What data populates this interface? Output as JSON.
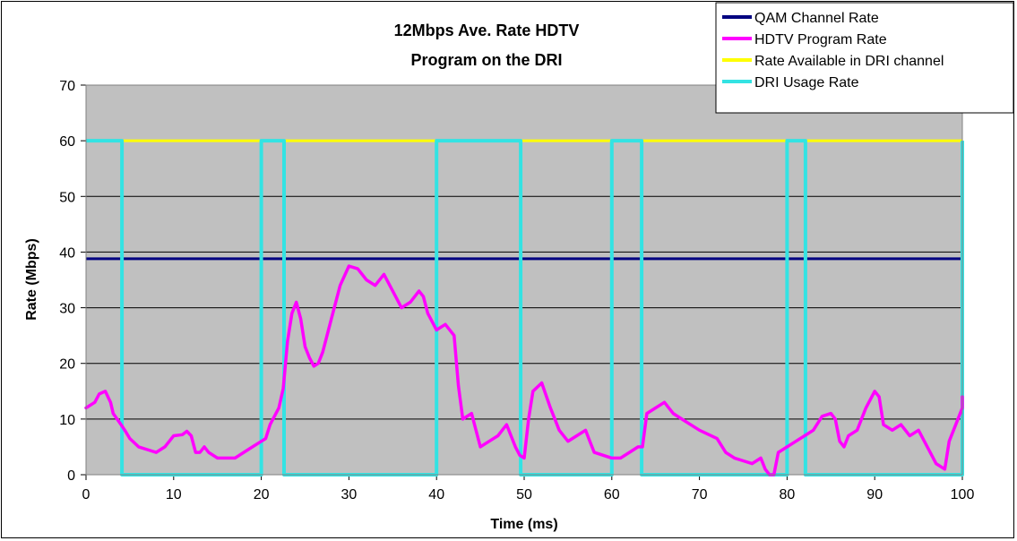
{
  "chart_data": {
    "type": "line",
    "title_lines": [
      "12Mbps Ave. Rate HDTV",
      "Program on the DRI"
    ],
    "xlabel": "Time (ms)",
    "ylabel": "Rate (Mbps)",
    "xlim": [
      0,
      100
    ],
    "ylim": [
      0,
      70
    ],
    "x_ticks": [
      0,
      10,
      20,
      30,
      40,
      50,
      60,
      70,
      80,
      90,
      100
    ],
    "y_ticks": [
      0,
      10,
      20,
      30,
      40,
      50,
      60,
      70
    ],
    "grid": true,
    "legend_position": "top-right",
    "colors": {
      "plot_background": "#C0C0C0",
      "gridline": "#000000"
    },
    "series": [
      {
        "name": "QAM Channel Rate",
        "color": "#000080",
        "points": [
          [
            0,
            38.8
          ],
          [
            100,
            38.8
          ]
        ]
      },
      {
        "name": "HDTV Program Rate",
        "color": "#FF00FF",
        "points": [
          [
            0,
            12
          ],
          [
            1,
            13
          ],
          [
            1.5,
            14.5
          ],
          [
            2.2,
            15
          ],
          [
            2.8,
            13
          ],
          [
            3.1,
            11
          ],
          [
            4,
            9
          ],
          [
            4.5,
            7.8
          ],
          [
            5,
            6.5
          ],
          [
            6,
            5
          ],
          [
            7,
            4.5
          ],
          [
            8,
            4
          ],
          [
            9,
            5
          ],
          [
            10,
            7
          ],
          [
            11,
            7.2
          ],
          [
            11.5,
            7.8
          ],
          [
            12,
            7
          ],
          [
            12.5,
            4
          ],
          [
            13,
            4
          ],
          [
            13.5,
            5
          ],
          [
            14,
            4
          ],
          [
            15,
            3
          ],
          [
            16,
            3
          ],
          [
            17,
            3
          ],
          [
            18,
            4
          ],
          [
            19,
            5
          ],
          [
            20,
            6
          ],
          [
            20.5,
            6.5
          ],
          [
            21,
            9
          ],
          [
            22,
            12
          ],
          [
            22.5,
            15.5
          ],
          [
            23,
            24
          ],
          [
            23.5,
            29
          ],
          [
            24,
            31
          ],
          [
            24.5,
            28
          ],
          [
            25,
            23
          ],
          [
            25.5,
            21
          ],
          [
            26,
            19.5
          ],
          [
            26.5,
            20
          ],
          [
            27,
            22
          ],
          [
            28,
            28
          ],
          [
            29,
            34
          ],
          [
            30,
            37.5
          ],
          [
            31,
            37
          ],
          [
            32,
            35
          ],
          [
            33,
            34
          ],
          [
            34,
            36
          ],
          [
            35,
            33
          ],
          [
            36,
            30
          ],
          [
            37,
            31
          ],
          [
            38,
            33
          ],
          [
            38.5,
            32
          ],
          [
            39,
            29
          ],
          [
            40,
            26
          ],
          [
            41,
            27
          ],
          [
            42,
            25
          ],
          [
            42.5,
            16
          ],
          [
            43,
            10
          ],
          [
            44,
            11
          ],
          [
            44.5,
            8
          ],
          [
            45,
            5
          ],
          [
            46,
            6
          ],
          [
            47,
            7
          ],
          [
            48,
            9
          ],
          [
            48.5,
            7
          ],
          [
            49,
            5
          ],
          [
            49.5,
            3.5
          ],
          [
            50,
            3
          ],
          [
            50.5,
            10
          ],
          [
            51,
            15
          ],
          [
            52,
            16.5
          ],
          [
            53,
            12
          ],
          [
            54,
            8
          ],
          [
            55,
            6
          ],
          [
            56,
            7
          ],
          [
            57,
            8
          ],
          [
            57.5,
            6
          ],
          [
            58,
            4
          ],
          [
            60,
            3
          ],
          [
            61,
            3
          ],
          [
            62,
            4
          ],
          [
            63,
            5
          ],
          [
            63.5,
            5
          ],
          [
            64,
            11
          ],
          [
            65,
            12
          ],
          [
            66,
            13
          ],
          [
            67,
            11
          ],
          [
            68,
            10
          ],
          [
            70,
            8
          ],
          [
            72,
            6.5
          ],
          [
            73,
            4
          ],
          [
            74,
            3
          ],
          [
            75,
            2.5
          ],
          [
            76,
            2
          ],
          [
            77,
            3
          ],
          [
            77.5,
            1
          ],
          [
            78,
            0
          ],
          [
            78.5,
            0
          ],
          [
            79,
            4
          ],
          [
            80,
            5
          ],
          [
            81,
            6
          ],
          [
            82,
            7
          ],
          [
            83,
            8
          ],
          [
            84,
            10.5
          ],
          [
            85,
            11
          ],
          [
            85.5,
            10
          ],
          [
            86,
            6
          ],
          [
            86.5,
            5
          ],
          [
            87,
            7
          ],
          [
            88,
            8
          ],
          [
            89,
            12
          ],
          [
            90,
            15
          ],
          [
            90.5,
            14
          ],
          [
            91,
            9
          ],
          [
            92,
            8
          ],
          [
            93,
            9
          ],
          [
            94,
            7
          ],
          [
            95,
            8
          ],
          [
            96,
            5
          ],
          [
            97,
            2
          ],
          [
            98,
            1
          ],
          [
            98.5,
            6
          ],
          [
            99,
            8
          ],
          [
            100,
            12
          ],
          [
            100,
            14
          ]
        ]
      },
      {
        "name": "Rate Available in DRI channel",
        "color": "#FFFF00",
        "points": [
          [
            0,
            60
          ],
          [
            100,
            60
          ]
        ]
      },
      {
        "name": "DRI Usage Rate",
        "color": "#33E3E3",
        "points": [
          [
            0,
            60
          ],
          [
            4.1,
            60
          ],
          [
            4.1,
            0
          ],
          [
            20,
            0
          ],
          [
            20,
            60
          ],
          [
            22.6,
            60
          ],
          [
            22.6,
            0
          ],
          [
            40,
            0
          ],
          [
            40,
            60
          ],
          [
            49.6,
            60
          ],
          [
            49.6,
            0
          ],
          [
            60,
            0
          ],
          [
            60,
            60
          ],
          [
            63.4,
            60
          ],
          [
            63.4,
            0
          ],
          [
            80,
            0
          ],
          [
            80,
            60
          ],
          [
            82.1,
            60
          ],
          [
            82.1,
            0
          ],
          [
            100,
            0
          ],
          [
            100,
            60
          ]
        ]
      }
    ]
  }
}
